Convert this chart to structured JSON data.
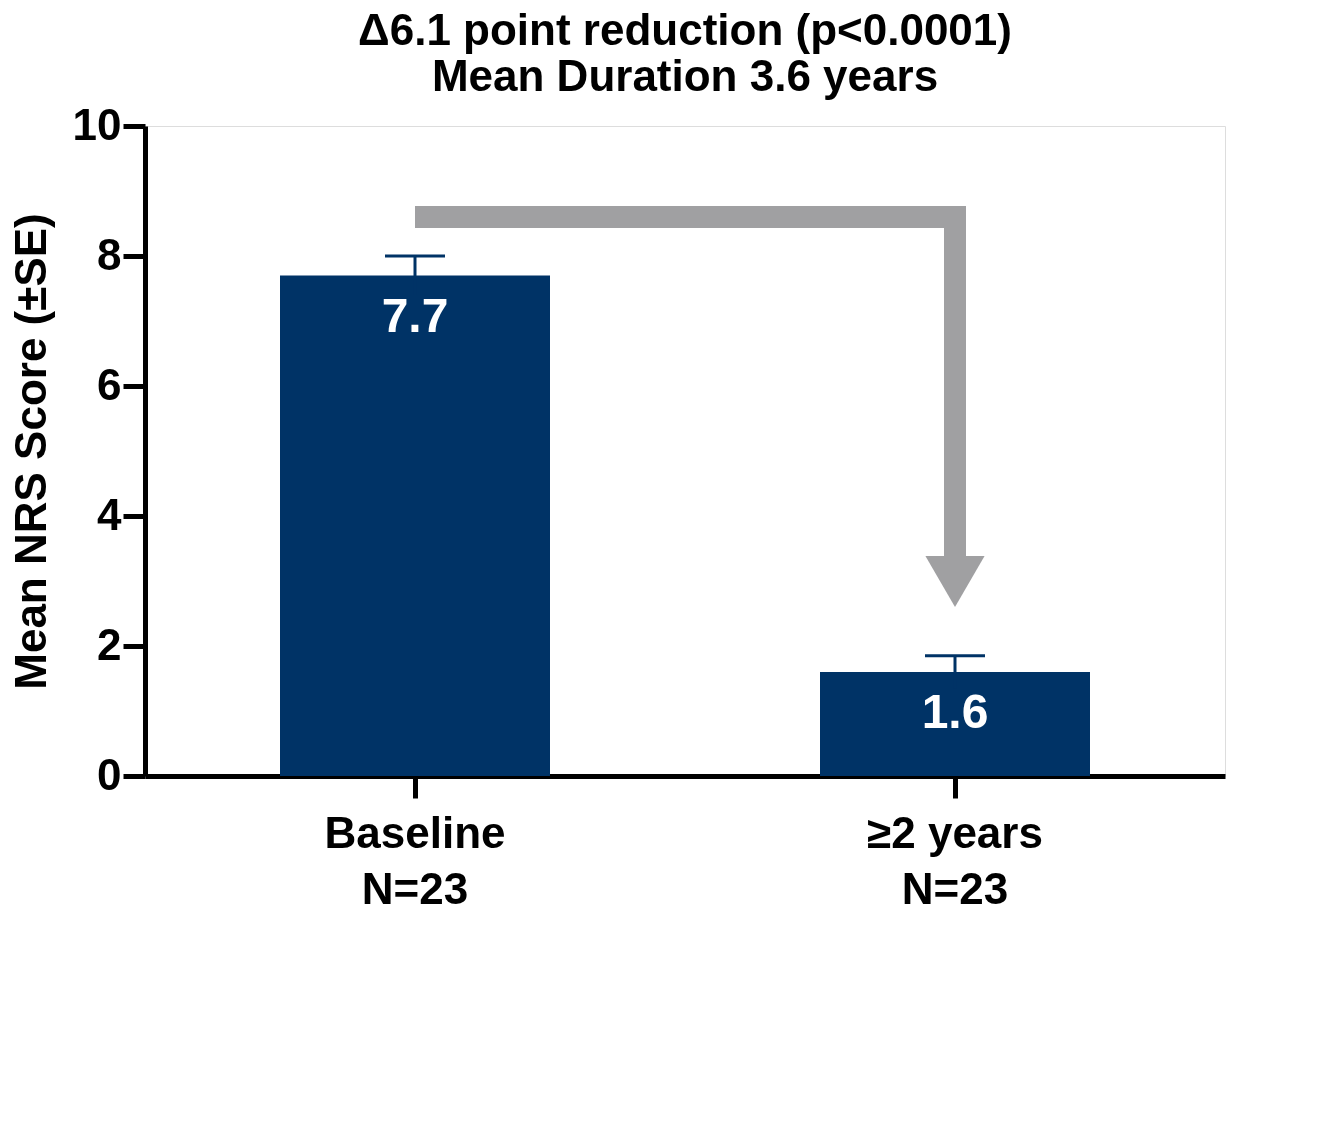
{
  "chart_data": {
    "type": "bar",
    "title": [
      "Δ6.1 point reduction (p<0.0001)",
      "Mean Duration 3.6 years"
    ],
    "ylabel": "Mean NRS Score (±SE)",
    "categories": [
      "Baseline\nN=23",
      "≥2 years\nN=23"
    ],
    "values": [
      7.7,
      1.6
    ],
    "errors": [
      0.3,
      0.25
    ],
    "color": "#003366",
    "ylim": [
      0,
      10
    ],
    "yticks": [
      0,
      2,
      4,
      6,
      8,
      10
    ],
    "data_labels": true,
    "grid": false
  }
}
